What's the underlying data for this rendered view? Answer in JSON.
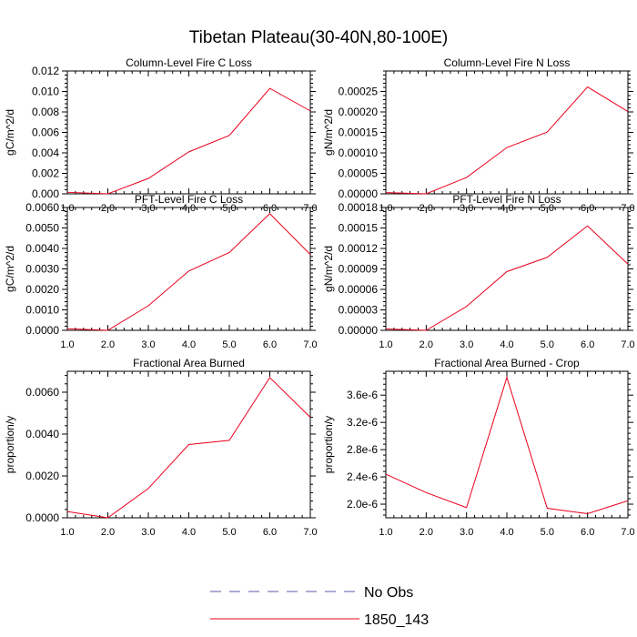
{
  "title": "Tibetan Plateau(30-40N,80-100E)",
  "legend": {
    "items": [
      {
        "label": "No Obs",
        "color": "#5a5aa8",
        "dashed": true
      },
      {
        "label": "1850_143",
        "color": "#e8001c",
        "dashed": false
      }
    ]
  },
  "chart_data": [
    {
      "type": "line",
      "title": "Column-Level Fire C Loss",
      "ylabel": "gC/m^2/d",
      "x": [
        1,
        2,
        3,
        4,
        5,
        6,
        7
      ],
      "xticks": [
        "1.0",
        "2.0",
        "3.0",
        "4.0",
        "5.0",
        "6.0",
        "7.0"
      ],
      "xlim": [
        1,
        7
      ],
      "ylim": [
        0,
        0.012
      ],
      "yticks": [
        0,
        0.002,
        0.004,
        0.006,
        0.008,
        0.01,
        0.012
      ],
      "yticklabels": [
        "0.000",
        "0.002",
        "0.004",
        "0.006",
        "0.008",
        "0.010",
        "0.012"
      ],
      "series": [
        {
          "name": "1850_143",
          "color": "#e8001c",
          "values": [
            0.00015,
            0.0,
            0.0015,
            0.0041,
            0.0057,
            0.0103,
            0.0081
          ]
        }
      ]
    },
    {
      "type": "line",
      "title": "Column-Level Fire N Loss",
      "ylabel": "gN/m^2/d",
      "x": [
        1,
        2,
        3,
        4,
        5,
        6,
        7
      ],
      "xticks": [
        "1.0",
        "2.0",
        "3.0",
        "4.0",
        "5.0",
        "6.0",
        "7.0"
      ],
      "xlim": [
        1,
        7
      ],
      "ylim": [
        0,
        0.0003
      ],
      "yticks": [
        0,
        5e-05,
        0.0001,
        0.00015,
        0.0002,
        0.00025
      ],
      "yticklabels": [
        "0.00000",
        "0.00005",
        "0.00010",
        "0.00015",
        "0.00020",
        "0.00025"
      ],
      "series": [
        {
          "name": "1850_143",
          "color": "#e8001c",
          "values": [
            3e-06,
            0.0,
            4e-05,
            0.000113,
            0.000151,
            0.000261,
            0.000201
          ]
        }
      ]
    },
    {
      "type": "line",
      "title": "PFT-Level Fire C Loss",
      "ylabel": "gC/m^2/d",
      "x": [
        1,
        2,
        3,
        4,
        5,
        6,
        7
      ],
      "xticks": [
        "1.0",
        "2.0",
        "3.0",
        "4.0",
        "5.0",
        "6.0",
        "7.0"
      ],
      "xlim": [
        1,
        7
      ],
      "ylim": [
        0,
        0.006
      ],
      "yticks": [
        0,
        0.001,
        0.002,
        0.003,
        0.004,
        0.005,
        0.006
      ],
      "yticklabels": [
        "0.0000",
        "0.0010",
        "0.0020",
        "0.0030",
        "0.0040",
        "0.0050",
        "0.0060"
      ],
      "series": [
        {
          "name": "1850_143",
          "color": "#e8001c",
          "values": [
            8e-05,
            0.0,
            0.0012,
            0.0029,
            0.0038,
            0.0057,
            0.0037
          ]
        }
      ]
    },
    {
      "type": "line",
      "title": "PFT-Level Fire N Loss",
      "ylabel": "gN/m^2/d",
      "x": [
        1,
        2,
        3,
        4,
        5,
        6,
        7
      ],
      "xticks": [
        "1.0",
        "2.0",
        "3.0",
        "4.0",
        "5.0",
        "6.0",
        "7.0"
      ],
      "xlim": [
        1,
        7
      ],
      "ylim": [
        0,
        0.00018
      ],
      "yticks": [
        0,
        3e-05,
        6e-05,
        9e-05,
        0.00012,
        0.00015,
        0.00018
      ],
      "yticklabels": [
        "0.00000",
        "0.00003",
        "0.00006",
        "0.00009",
        "0.00012",
        "0.00015",
        "0.00018"
      ],
      "series": [
        {
          "name": "1850_143",
          "color": "#e8001c",
          "values": [
            2e-06,
            0.0,
            3.5e-05,
            8.6e-05,
            0.000107,
            0.000153,
            9.7e-05
          ]
        }
      ]
    },
    {
      "type": "line",
      "title": "Fractional Area Burned",
      "ylabel": "proportion/y",
      "x": [
        1,
        2,
        3,
        4,
        5,
        6,
        7
      ],
      "xticks": [
        "1.0",
        "2.0",
        "3.0",
        "4.0",
        "5.0",
        "6.0",
        "7.0"
      ],
      "xlim": [
        1,
        7
      ],
      "ylim": [
        0,
        0.007
      ],
      "yticks": [
        0,
        0.002,
        0.004,
        0.006
      ],
      "yticklabels": [
        "0.0000",
        "0.0020",
        "0.0040",
        "0.0060"
      ],
      "series": [
        {
          "name": "1850_143",
          "color": "#e8001c",
          "values": [
            0.0003,
            0.0,
            0.0014,
            0.0035,
            0.0037,
            0.0067,
            0.0048
          ]
        }
      ]
    },
    {
      "type": "line",
      "title": "Fractional Area Burned - Crop",
      "ylabel": "proportion/y",
      "x": [
        1,
        2,
        3,
        4,
        5,
        6,
        7
      ],
      "xticks": [
        "1.0",
        "2.0",
        "3.0",
        "4.0",
        "5.0",
        "6.0",
        "7.0"
      ],
      "xlim": [
        1,
        7
      ],
      "ylim": [
        1.8e-06,
        3.95e-06
      ],
      "yticks": [
        2e-06,
        2.4e-06,
        2.8e-06,
        3.2e-06,
        3.6e-06
      ],
      "yticklabels": [
        "2.0e-6",
        "2.4e-6",
        "2.8e-6",
        "3.2e-6",
        "3.6e-6"
      ],
      "series": [
        {
          "name": "1850_143",
          "color": "#e8001c",
          "values": [
            2.44e-06,
            2.17e-06,
            1.95e-06,
            3.86e-06,
            1.94e-06,
            1.86e-06,
            2.05e-06
          ]
        }
      ]
    }
  ]
}
